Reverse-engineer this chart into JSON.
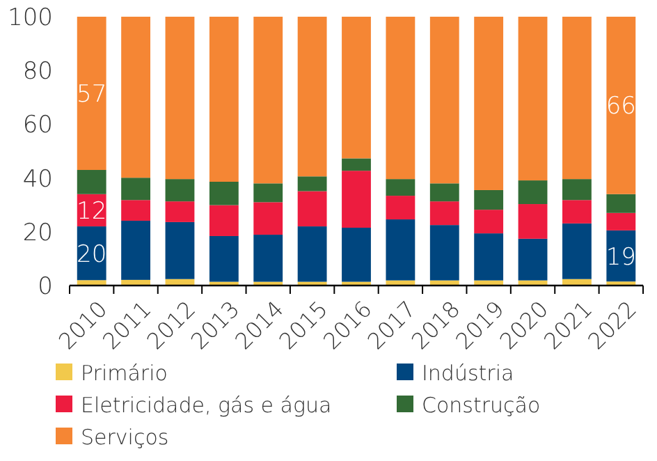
{
  "chart_data": {
    "type": "bar",
    "stacked": true,
    "categories": [
      "2010",
      "2011",
      "2012",
      "2013",
      "2014",
      "2015",
      "2016",
      "2017",
      "2018",
      "2019",
      "2020",
      "2021",
      "2022"
    ],
    "series": [
      {
        "name": "Primário",
        "color": "#f2c94c",
        "values": [
          2,
          2.1,
          2.4,
          1.4,
          1.4,
          1.4,
          1.4,
          1.9,
          1.9,
          1.9,
          1.9,
          2.4,
          1.5
        ]
      },
      {
        "name": "Indústria",
        "color": "#00467f",
        "values": [
          20,
          22,
          21.2,
          17,
          17.5,
          20.6,
          20.1,
          22.7,
          20.6,
          17.5,
          15.5,
          20.7,
          19
        ],
        "value_labels": [
          "20",
          null,
          null,
          null,
          null,
          null,
          null,
          null,
          null,
          null,
          null,
          null,
          "19"
        ]
      },
      {
        "name": "Eletricidade, gás e água",
        "color": "#ed1c3f",
        "values": [
          12,
          7.7,
          7.7,
          11.5,
          12.1,
          13.1,
          21.2,
          8.8,
          8.8,
          8.8,
          12.9,
          8.7,
          6.5
        ],
        "value_labels": [
          "12",
          null,
          null,
          null,
          null,
          null,
          null,
          null,
          null,
          null,
          null,
          null,
          null
        ]
      },
      {
        "name": "Construção",
        "color": "#336b35",
        "values": [
          9,
          8.3,
          8.3,
          8.7,
          7,
          5.5,
          4.6,
          6.2,
          6.7,
          7.3,
          8.8,
          7.8,
          7
        ]
      },
      {
        "name": "Serviços",
        "color": "#f58634",
        "values": [
          57,
          59.9,
          60.4,
          61.4,
          62,
          59.4,
          52.7,
          60.4,
          62,
          64.5,
          60.9,
          60.4,
          66
        ],
        "value_labels": [
          "57",
          null,
          null,
          null,
          null,
          null,
          null,
          null,
          null,
          null,
          null,
          null,
          "66"
        ]
      }
    ],
    "ylim": [
      0,
      100
    ],
    "yticks": [
      0,
      20,
      40,
      60,
      80,
      100
    ],
    "legend": "bottom"
  }
}
